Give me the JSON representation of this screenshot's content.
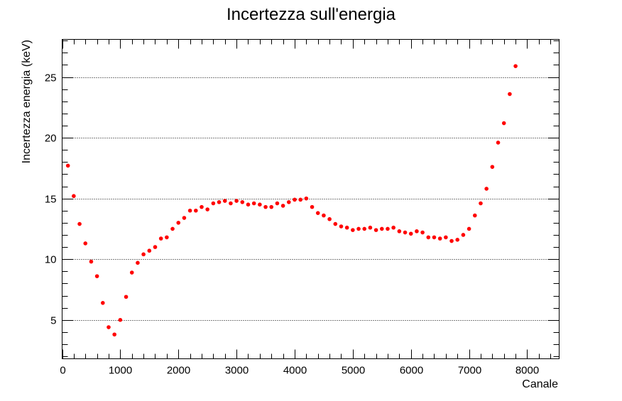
{
  "chart_data": {
    "type": "scatter",
    "title": "Incertezza sull'energia",
    "xlabel": "Canale",
    "ylabel": "Incertezza energia (keV)",
    "xlim": [
      0,
      8550
    ],
    "ylim": [
      1.8,
      28.1
    ],
    "grid": "horizontal-dotted",
    "marker_color": "#ff0000",
    "x_ticks": [
      0,
      1000,
      2000,
      3000,
      4000,
      5000,
      6000,
      7000,
      8000
    ],
    "x_tick_labels": [
      "0",
      "1000",
      "2000",
      "3000",
      "4000",
      "5000",
      "6000",
      "7000",
      "8000"
    ],
    "y_ticks": [
      5,
      10,
      15,
      20,
      25
    ],
    "y_tick_labels": [
      "5",
      "10",
      "15",
      "20",
      "25"
    ],
    "series": [
      {
        "x": [
          100,
          200,
          300,
          400,
          500,
          600,
          700,
          800,
          900,
          1000,
          1100,
          1200,
          1300,
          1400,
          1500,
          1600,
          1700,
          1800,
          1900,
          2000,
          2100,
          2200,
          2300,
          2400,
          2500,
          2600,
          2700,
          2800,
          2900,
          3000,
          3100,
          3200,
          3300,
          3400,
          3500,
          3600,
          3700,
          3800,
          3900,
          4000,
          4100,
          4200,
          4300,
          4400,
          4500,
          4600,
          4700,
          4800,
          4900,
          5000,
          5100,
          5200,
          5300,
          5400,
          5500,
          5600,
          5700,
          5800,
          5900,
          6000,
          6100,
          6200,
          6300,
          6400,
          6500,
          6600,
          6700,
          6800,
          6900,
          7000,
          7100,
          7200,
          7300,
          7400,
          7500,
          7600,
          7700,
          7800
        ],
        "y": [
          17.7,
          15.2,
          12.9,
          11.3,
          9.8,
          8.6,
          6.4,
          4.4,
          3.8,
          5.0,
          6.9,
          8.9,
          9.7,
          10.4,
          10.7,
          11.0,
          11.7,
          11.8,
          12.5,
          13.0,
          13.4,
          14.0,
          14.0,
          14.3,
          14.1,
          14.6,
          14.7,
          14.8,
          14.6,
          14.8,
          14.7,
          14.5,
          14.6,
          14.5,
          14.3,
          14.3,
          14.6,
          14.4,
          14.7,
          14.9,
          14.9,
          15.0,
          14.3,
          13.8,
          13.6,
          13.3,
          12.9,
          12.7,
          12.6,
          12.4,
          12.5,
          12.5,
          12.6,
          12.4,
          12.5,
          12.5,
          12.6,
          12.3,
          12.2,
          12.1,
          12.3,
          12.2,
          11.8,
          11.8,
          11.7,
          11.8,
          11.5,
          11.6,
          12.0,
          12.5,
          13.6,
          14.6,
          15.8,
          17.6,
          19.6,
          21.2,
          23.6,
          25.9
        ]
      }
    ]
  }
}
